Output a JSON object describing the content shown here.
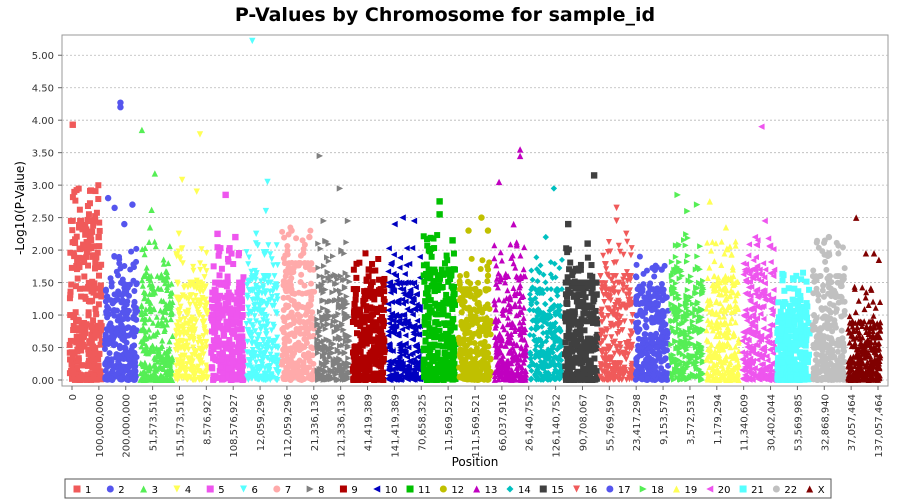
{
  "chart_data": {
    "type": "scatter",
    "title": "P-Values by Chromosome for sample_id",
    "xlabel": "Position",
    "ylabel": "-Log10(P-Value)",
    "ylim": [
      0,
      5.25
    ],
    "y_ticks": [
      "0.00",
      "0.50",
      "1.00",
      "1.50",
      "2.00",
      "2.50",
      "3.00",
      "3.50",
      "4.00",
      "4.50",
      "5.00"
    ],
    "x_ticks": [
      "0",
      "100,000,000",
      "200,000,000",
      "51,573,516",
      "151,573,516",
      "8,576,927",
      "108,576,927",
      "12,059,296",
      "112,059,296",
      "21,336,136",
      "121,336,136",
      "41,419,389",
      "141,419,389",
      "70,658,325",
      "11,569,521",
      "111,569,521",
      "66,037,916",
      "26,140,752",
      "126,140,752",
      "90,708,067",
      "55,769,597",
      "23,417,298",
      "9,153,579",
      "3,572,531",
      "1,179,294",
      "11,340,609",
      "30,402,044",
      "53,569,985",
      "32,868,940",
      "37,057,464",
      "137,057,464"
    ],
    "grid": "horizontal",
    "legend_position": "bottom",
    "series": [
      {
        "name": "1",
        "color": "#f05a5a",
        "shape": "square",
        "band": [
          0.5,
          2.45
        ],
        "peaks": [
          [
            0.1,
            3.93
          ],
          [
            0.3,
            2.35
          ],
          [
            0.75,
            2.45
          ],
          [
            0.9,
            2.2
          ]
        ]
      },
      {
        "name": "2",
        "color": "#5555ee",
        "shape": "circle",
        "band": [
          0.3,
          1.5
        ],
        "peaks": [
          [
            0.48,
            4.27
          ],
          [
            0.48,
            4.2
          ],
          [
            0.1,
            2.8
          ],
          [
            0.3,
            2.65
          ],
          [
            0.85,
            2.7
          ],
          [
            0.6,
            2.4
          ]
        ]
      },
      {
        "name": "3",
        "color": "#55ee55",
        "shape": "triangle",
        "band": [
          0.3,
          1.6
        ],
        "peaks": [
          [
            0.05,
            3.85
          ],
          [
            0.45,
            3.18
          ],
          [
            0.35,
            2.62
          ],
          [
            0.3,
            2.35
          ]
        ]
      },
      {
        "name": "4",
        "color": "#ffff55",
        "shape": "triangle-down",
        "band": [
          0.3,
          1.5
        ],
        "peaks": [
          [
            0.2,
            3.08
          ],
          [
            0.75,
            3.78
          ],
          [
            0.65,
            2.9
          ],
          [
            0.1,
            2.25
          ]
        ]
      },
      {
        "name": "5",
        "color": "#ee55ee",
        "shape": "square",
        "band": [
          0.3,
          1.5
        ],
        "peaks": [
          [
            0.45,
            2.85
          ],
          [
            0.2,
            2.25
          ],
          [
            0.75,
            2.2
          ]
        ]
      },
      {
        "name": "6",
        "color": "#55ffff",
        "shape": "triangle-down",
        "band": [
          0.3,
          1.6
        ],
        "peaks": [
          [
            0.18,
            5.22
          ],
          [
            0.65,
            3.05
          ],
          [
            0.6,
            2.6
          ],
          [
            0.3,
            2.25
          ]
        ]
      },
      {
        "name": "7",
        "color": "#ffaaaa",
        "shape": "circle",
        "band": [
          0.3,
          1.8
        ],
        "peaks": [
          [
            0.3,
            2.3
          ],
          [
            0.85,
            2.2
          ]
        ]
      },
      {
        "name": "8",
        "color": "#808080",
        "shape": "triangle-right",
        "band": [
          0.3,
          1.6
        ],
        "peaks": [
          [
            0.08,
            3.45
          ],
          [
            0.7,
            2.95
          ],
          [
            0.2,
            2.45
          ],
          [
            0.95,
            2.45
          ]
        ]
      },
      {
        "name": "9",
        "color": "#b00000",
        "shape": "square",
        "band": [
          0.2,
          1.4
        ],
        "peaks": [
          [
            0.5,
            1.7
          ]
        ]
      },
      {
        "name": "10",
        "color": "#0000c0",
        "shape": "triangle-left",
        "band": [
          0.2,
          1.5
        ],
        "peaks": [
          [
            0.45,
            2.5
          ],
          [
            0.2,
            2.4
          ],
          [
            0.8,
            2.45
          ]
        ]
      },
      {
        "name": "11",
        "color": "#00c000",
        "shape": "square",
        "band": [
          0.3,
          1.7
        ],
        "peaks": [
          [
            0.5,
            2.75
          ],
          [
            0.5,
            2.55
          ],
          [
            0.9,
            2.15
          ]
        ]
      },
      {
        "name": "12",
        "color": "#c0c000",
        "shape": "circle",
        "band": [
          0.3,
          1.4
        ],
        "peaks": [
          [
            0.7,
            2.5
          ],
          [
            0.3,
            2.3
          ],
          [
            0.9,
            2.3
          ]
        ]
      },
      {
        "name": "13",
        "color": "#c000c0",
        "shape": "triangle",
        "band": [
          0.3,
          1.6
        ],
        "peaks": [
          [
            0.8,
            3.55
          ],
          [
            0.8,
            3.45
          ],
          [
            0.15,
            3.05
          ],
          [
            0.6,
            2.4
          ]
        ]
      },
      {
        "name": "14",
        "color": "#00c0c0",
        "shape": "diamond",
        "band": [
          0.3,
          1.4
        ],
        "peaks": [
          [
            0.75,
            2.95
          ],
          [
            0.5,
            2.2
          ]
        ]
      },
      {
        "name": "15",
        "color": "#404040",
        "shape": "square",
        "band": [
          0.3,
          1.5
        ],
        "peaks": [
          [
            0.9,
            3.15
          ],
          [
            0.1,
            2.4
          ],
          [
            0.7,
            2.1
          ]
        ]
      },
      {
        "name": "16",
        "color": "#f05a5a",
        "shape": "triangle-down",
        "band": [
          0.3,
          1.6
        ],
        "peaks": [
          [
            0.5,
            2.65
          ],
          [
            0.5,
            2.45
          ],
          [
            0.8,
            2.25
          ]
        ]
      },
      {
        "name": "17",
        "color": "#5555ee",
        "shape": "circle",
        "band": [
          0.3,
          1.4
        ],
        "peaks": [
          [
            0.8,
            1.7
          ]
        ]
      },
      {
        "name": "18",
        "color": "#55ee55",
        "shape": "triangle-right",
        "band": [
          0.3,
          1.7
        ],
        "peaks": [
          [
            0.2,
            2.85
          ],
          [
            0.5,
            2.6
          ],
          [
            0.8,
            2.7
          ]
        ]
      },
      {
        "name": "19",
        "color": "#ffff55",
        "shape": "triangle",
        "band": [
          0.3,
          1.6
        ],
        "peaks": [
          [
            0.1,
            2.75
          ],
          [
            0.6,
            2.35
          ]
        ]
      },
      {
        "name": "20",
        "color": "#ee55ee",
        "shape": "triangle-left",
        "band": [
          0.3,
          1.7
        ],
        "peaks": [
          [
            0.6,
            3.9
          ],
          [
            0.7,
            2.45
          ],
          [
            0.4,
            2.2
          ]
        ]
      },
      {
        "name": "21",
        "color": "#55ffff",
        "shape": "square",
        "band": [
          0.1,
          1.2
        ],
        "peaks": [
          [
            0.5,
            1.55
          ]
        ]
      },
      {
        "name": "22",
        "color": "#c0c0c0",
        "shape": "circle",
        "band": [
          0.3,
          1.6
        ],
        "peaks": [
          [
            0.5,
            2.2
          ],
          [
            0.5,
            1.95
          ]
        ]
      },
      {
        "name": "X",
        "color": "#800000",
        "shape": "triangle",
        "band": [
          0.05,
          0.9
        ],
        "peaks": [
          [
            0.25,
            2.5
          ],
          [
            0.55,
            1.95
          ],
          [
            0.8,
            1.95
          ],
          [
            0.95,
            1.85
          ]
        ]
      }
    ]
  }
}
